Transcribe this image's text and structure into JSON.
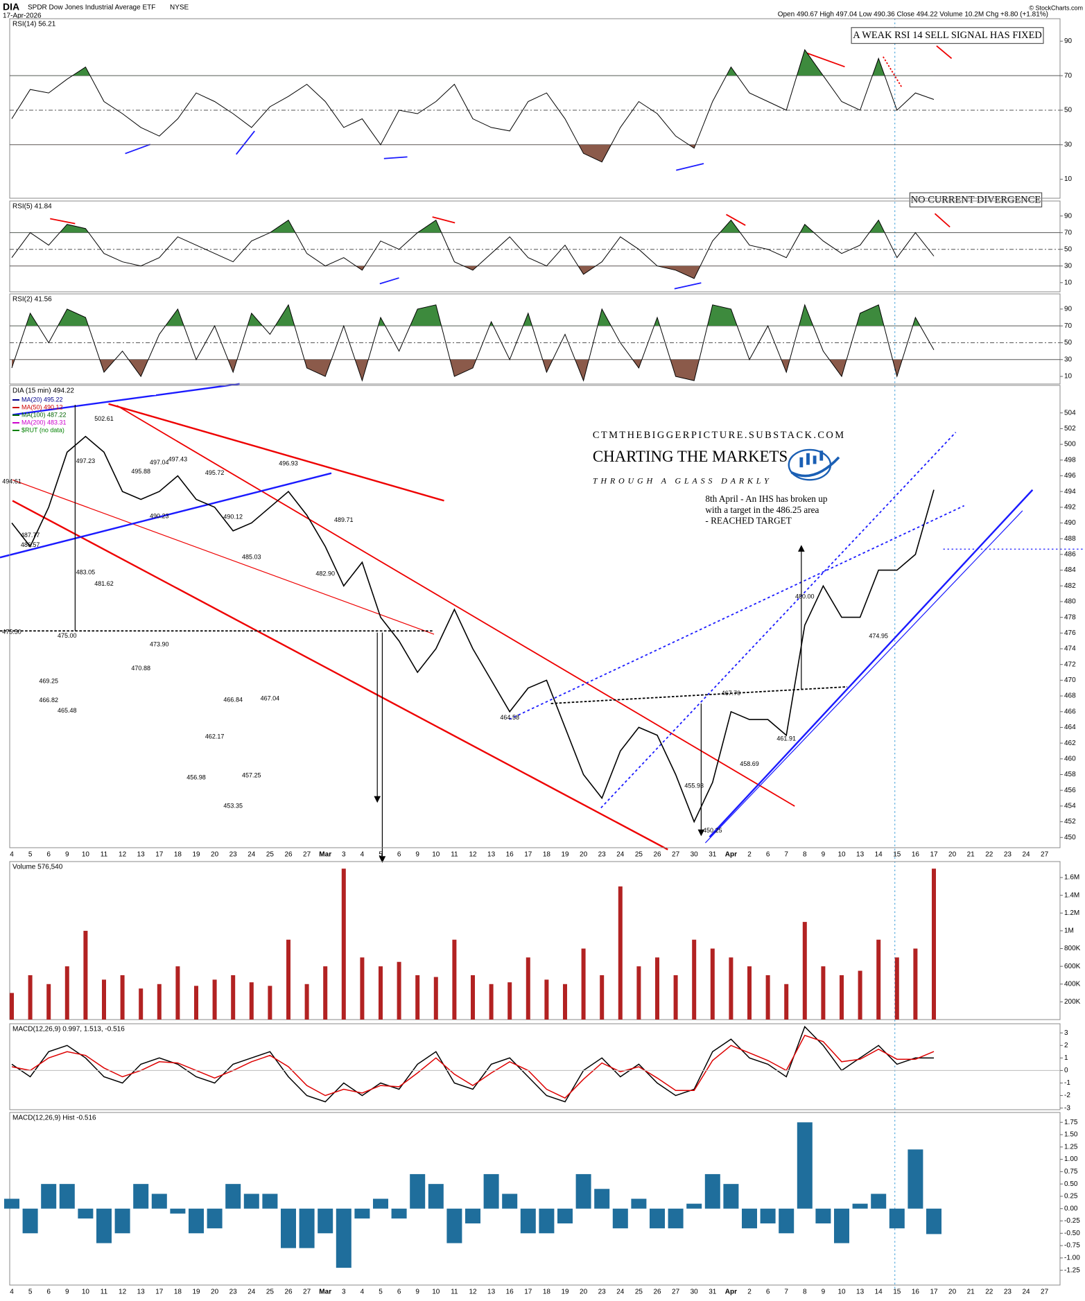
{
  "header": {
    "symbol": "DIA",
    "name": "SPDR Dow Jones Industrial Average ETF",
    "exchange": "NYSE",
    "date": "17-Apr-2026",
    "quote": "Open 490.67  High 497.04  Low 490.36  Close 494.22  Volume 10.2M  Chg +8.80 (+1.81%)",
    "copyright": "© StockCharts.com"
  },
  "annotations": {
    "rsi14_note": "A WEAK RSI 14 SELL SIGNAL HAS FIXED",
    "rsi5_note": "NO CURRENT DIVERGENCE",
    "ihs_note": [
      "8th April - An IHS has broken up",
      "with a target in the 486.25 area",
      "- REACHED TARGET"
    ],
    "site": "CTMTHEBIGGERPICTURE.SUBSTACK.COM",
    "brand": "CHARTING THE MARKETS",
    "tagline": "THROUGH A GLASS DARKLY"
  },
  "chart_data": [
    {
      "type": "line",
      "title": "RSI(14) 56.21",
      "color": "#000000",
      "ylim": [
        -1,
        103
      ],
      "yticks": [
        10,
        30,
        50,
        70,
        90
      ],
      "levels": [
        30,
        50,
        70
      ],
      "fill_colors": [
        "#8b5a4a",
        "#3d8a3d"
      ],
      "values": [
        45,
        62,
        60,
        68,
        75,
        55,
        48,
        40,
        35,
        45,
        60,
        55,
        48,
        40,
        52,
        58,
        65,
        55,
        40,
        45,
        30,
        50,
        48,
        55,
        65,
        45,
        40,
        38,
        55,
        60,
        45,
        25,
        20,
        40,
        55,
        48,
        35,
        28,
        55,
        75,
        60,
        55,
        50,
        85,
        70,
        55,
        50,
        80,
        50,
        60,
        56.21,
        null,
        null,
        null,
        null,
        null,
        null
      ]
    },
    {
      "type": "line",
      "title": "RSI(5) 41.84",
      "color": "#000000",
      "ylim": [
        -1,
        108
      ],
      "yticks": [
        10,
        30,
        50,
        70,
        90
      ],
      "levels": [
        30,
        50,
        70
      ],
      "fill_colors": [
        "#8b5a4a",
        "#3d8a3d"
      ],
      "values": [
        40,
        70,
        55,
        80,
        75,
        45,
        35,
        30,
        40,
        65,
        55,
        45,
        35,
        60,
        70,
        85,
        45,
        30,
        40,
        25,
        60,
        50,
        70,
        85,
        35,
        25,
        45,
        65,
        40,
        30,
        55,
        20,
        35,
        65,
        50,
        30,
        25,
        15,
        60,
        85,
        55,
        50,
        40,
        80,
        60,
        45,
        55,
        85,
        40,
        70,
        41.84,
        null,
        null,
        null,
        null,
        null,
        null
      ]
    },
    {
      "type": "line",
      "title": "RSI(2) 41.56",
      "color": "#000000",
      "ylim": [
        1,
        108
      ],
      "yticks": [
        10,
        30,
        50,
        70,
        90
      ],
      "levels": [
        30,
        50,
        70
      ],
      "fill_colors": [
        "#8b5a4a",
        "#3d8a3d"
      ],
      "values": [
        20,
        85,
        50,
        90,
        80,
        15,
        40,
        10,
        60,
        90,
        30,
        70,
        15,
        85,
        60,
        95,
        20,
        10,
        70,
        5,
        80,
        40,
        90,
        95,
        10,
        20,
        75,
        30,
        85,
        15,
        60,
        5,
        90,
        50,
        20,
        80,
        10,
        5,
        95,
        90,
        30,
        70,
        15,
        95,
        40,
        10,
        85,
        95,
        10,
        80,
        41.56,
        null,
        null,
        null,
        null,
        null,
        null
      ]
    },
    {
      "type": "line",
      "title": "DIA (15 min) 494.22",
      "color": "#000000",
      "legend": [
        {
          "text": "MA(20) 495.22",
          "color": "#00008b"
        },
        {
          "text": "MA(50) 490.12",
          "color": "#cc0000"
        },
        {
          "text": "MA(100) 487.22",
          "color": "#006400"
        },
        {
          "text": "MA(200) 483.31",
          "color": "#cc00cc"
        },
        {
          "text": "$RUT (no data)",
          "color": "#008000"
        }
      ],
      "categories": [
        "4",
        "5",
        "6",
        "9",
        "10",
        "11",
        "12",
        "13",
        "17",
        "18",
        "19",
        "20",
        "23",
        "24",
        "25",
        "26",
        "27",
        "Mar",
        "3",
        "4",
        "5",
        "6",
        "9",
        "10",
        "11",
        "12",
        "13",
        "16",
        "17",
        "18",
        "19",
        "20",
        "23",
        "24",
        "25",
        "26",
        "27",
        "30",
        "31",
        "Apr",
        "2",
        "6",
        "7",
        "8",
        "9",
        "10",
        "13",
        "14",
        "15",
        "16",
        "17",
        "20",
        "21",
        "22",
        "23",
        "24",
        "27"
      ],
      "ylim": [
        448.7,
        507.5
      ],
      "yticks": [
        450,
        452,
        454,
        456,
        458,
        460,
        462,
        464,
        466,
        468,
        470,
        472,
        474,
        476,
        478,
        480,
        482,
        484,
        486,
        488,
        490,
        492,
        494,
        496,
        498,
        500,
        502,
        504
      ],
      "values": [
        490,
        487,
        492,
        499,
        501,
        499,
        494,
        493,
        494,
        496,
        493,
        492,
        489,
        490,
        492,
        494,
        491,
        487,
        482,
        485,
        478,
        475,
        471,
        474,
        479,
        474,
        470,
        466,
        469,
        470,
        464,
        458,
        455,
        461,
        464,
        463,
        458,
        452,
        457,
        466,
        465,
        465,
        463,
        477,
        482,
        478,
        478,
        484,
        484,
        486,
        494.22,
        null,
        null,
        null,
        null,
        null,
        null
      ],
      "price_labels": [
        {
          "date": "4",
          "value": 494.61
        },
        {
          "date": "5",
          "value": 486.57
        },
        {
          "date": "11",
          "value": 502.61
        },
        {
          "date": "10",
          "value": 497.23
        },
        {
          "date": "13",
          "value": 495.88
        },
        {
          "date": "18",
          "value": 497.43
        },
        {
          "date": "20",
          "value": 495.72
        },
        {
          "date": "17",
          "value": 490.23
        },
        {
          "date": "23",
          "value": 490.12
        },
        {
          "date": "24",
          "value": 485.03
        },
        {
          "date": "26",
          "value": 496.93
        },
        {
          "date": "3",
          "value": 489.71
        },
        {
          "date": "5",
          "value": 487.77
        },
        {
          "date": "Mar",
          "value": 482.9,
          "label": "482.90"
        },
        {
          "date": "4",
          "value": 475.5,
          "label": "475.50"
        },
        {
          "date": "9",
          "value": 475,
          "label": "475.00"
        },
        {
          "date": "11",
          "value": 481.62
        },
        {
          "date": "6",
          "value": 469.25
        },
        {
          "date": "9",
          "value": 465.48
        },
        {
          "date": "13",
          "value": 470.88
        },
        {
          "date": "17",
          "value": 473.9,
          "label": "473.90"
        },
        {
          "date": "16",
          "value": 464.58
        },
        {
          "date": "23",
          "value": 466.84
        },
        {
          "date": "25",
          "value": 467.04
        },
        {
          "date": "20",
          "value": 462.17
        },
        {
          "date": "19",
          "value": 456.98
        },
        {
          "date": "23",
          "value": 453.35
        },
        {
          "date": "24",
          "value": 457.25
        },
        {
          "date": "30",
          "value": 455.93
        },
        {
          "date": "31",
          "value": 450.25
        },
        {
          "date": "2",
          "value": 458.69
        },
        {
          "date": "Apr",
          "value": 467.7,
          "label": "467.70"
        },
        {
          "date": "6",
          "value": 466.82
        },
        {
          "date": "7",
          "value": 461.91
        },
        {
          "date": "8",
          "value": 480,
          "label": "480.00"
        },
        {
          "date": "10",
          "value": 483.05
        },
        {
          "date": "14",
          "value": 474.95
        },
        {
          "date": "17",
          "value": 497.04
        }
      ]
    },
    {
      "type": "bar",
      "title": "Volume 576,540",
      "color": "#b22222",
      "ylim": [
        0,
        1780000
      ],
      "yticks": [
        {
          "value": 200000,
          "label": "200K"
        },
        {
          "value": 400000,
          "label": "400K"
        },
        {
          "value": 600000,
          "label": "600K"
        },
        {
          "value": 800000,
          "label": "800K"
        },
        {
          "value": 1000000,
          "label": "1M"
        },
        {
          "value": 1200000,
          "label": "1.2M"
        },
        {
          "value": 1400000,
          "label": "1.4M"
        },
        {
          "value": 1600000,
          "label": "1.6M"
        }
      ],
      "values": [
        300000,
        500000,
        400000,
        600000,
        1000000,
        450000,
        500000,
        350000,
        400000,
        600000,
        380000,
        450000,
        500000,
        420000,
        380000,
        900000,
        400000,
        600000,
        1700000,
        700000,
        600000,
        650000,
        500000,
        480000,
        900000,
        500000,
        400000,
        420000,
        700000,
        450000,
        400000,
        800000,
        500000,
        1500000,
        600000,
        700000,
        500000,
        900000,
        800000,
        700000,
        600000,
        500000,
        400000,
        1100000,
        600000,
        500000,
        550000,
        900000,
        700000,
        800000,
        1700000,
        null,
        null,
        null,
        null,
        null,
        null
      ]
    },
    {
      "type": "line",
      "title": "MACD(12,26,9) 0.997, 1.513, -0.516",
      "ylim": [
        -3.13,
        3.73
      ],
      "yticks": [
        -3,
        -2,
        -1,
        0,
        1,
        2,
        3
      ],
      "series": [
        {
          "name": "MACD",
          "color": "#000000",
          "values": [
            0.5,
            -0.5,
            1.5,
            2,
            1,
            -0.5,
            -1,
            0.5,
            1,
            0.5,
            -0.5,
            -1,
            0.5,
            1,
            1.5,
            -0.5,
            -2,
            -2.5,
            -1,
            -2,
            -1,
            -1.5,
            0.5,
            1.5,
            -1,
            -1.5,
            0.5,
            1,
            -0.5,
            -2,
            -2.5,
            0,
            1,
            -0.5,
            0.5,
            -1,
            -2,
            -1.5,
            1.5,
            2.5,
            1,
            0.5,
            -0.5,
            3.5,
            2,
            0,
            1,
            2,
            0.5,
            1,
            0.997,
            null,
            null,
            null,
            null,
            null,
            null
          ]
        },
        {
          "name": "Signal",
          "color": "#dd0000",
          "values": [
            0.3,
            0,
            1,
            1.5,
            1.2,
            0.2,
            -0.5,
            0,
            0.7,
            0.6,
            0,
            -0.6,
            0,
            0.7,
            1.2,
            0.3,
            -1.2,
            -2,
            -1.5,
            -1.8,
            -1.2,
            -1.3,
            -0.2,
            1,
            -0.3,
            -1.2,
            -0.2,
            0.7,
            0,
            -1.5,
            -2.2,
            -0.7,
            0.6,
            -0.1,
            0.3,
            -0.6,
            -1.6,
            -1.6,
            0.8,
            2,
            1.4,
            0.8,
            0,
            2.8,
            2.3,
            0.7,
            0.9,
            1.7,
            0.9,
            0.9,
            1.513,
            null,
            null,
            null,
            null,
            null,
            null
          ]
        }
      ]
    },
    {
      "type": "bar",
      "title": "MACD(12,26,9) Hist -0.516",
      "color": "#1f6e9c",
      "ylim": [
        -1.55,
        1.95
      ],
      "yticks": [
        {
          "value": 1.75,
          "label": "1.75"
        },
        {
          "value": 1.5,
          "label": "1.50"
        },
        {
          "value": 1.25,
          "label": "1.25"
        },
        {
          "value": 1,
          "label": "1.00"
        },
        {
          "value": 0.75,
          "label": "0.75"
        },
        {
          "value": 0.5,
          "label": "0.50"
        },
        {
          "value": 0.25,
          "label": "0.25"
        },
        {
          "value": 0,
          "label": "0.00"
        },
        {
          "value": -0.25,
          "label": "-0.25"
        },
        {
          "value": -0.5,
          "label": "-0.50"
        },
        {
          "value": -0.75,
          "label": "-0.75"
        },
        {
          "value": -1,
          "label": "-1.00"
        },
        {
          "value": -1.25,
          "label": "-1.25"
        }
      ],
      "categories": [
        "4",
        "5",
        "6",
        "9",
        "10",
        "11",
        "12",
        "13",
        "17",
        "18",
        "19",
        "20",
        "23",
        "24",
        "25",
        "26",
        "27",
        "Mar",
        "3",
        "4",
        "5",
        "6",
        "9",
        "10",
        "11",
        "12",
        "13",
        "16",
        "17",
        "18",
        "19",
        "20",
        "23",
        "24",
        "25",
        "26",
        "27",
        "30",
        "31",
        "Apr",
        "2",
        "6",
        "7",
        "8",
        "9",
        "10",
        "13",
        "14",
        "15",
        "16",
        "17",
        "20",
        "21",
        "22",
        "23",
        "24",
        "27"
      ],
      "values": [
        0.2,
        -0.5,
        0.5,
        0.5,
        -0.2,
        -0.7,
        -0.5,
        0.5,
        0.3,
        -0.1,
        -0.5,
        -0.4,
        0.5,
        0.3,
        0.3,
        -0.8,
        -0.8,
        -0.5,
        -1.2,
        -0.2,
        0.2,
        -0.2,
        0.7,
        0.5,
        -0.7,
        -0.3,
        0.7,
        0.3,
        -0.5,
        -0.5,
        -0.3,
        0.7,
        0.4,
        -0.4,
        0.2,
        -0.4,
        -0.4,
        0.1,
        0.7,
        0.5,
        -0.4,
        -0.3,
        -0.5,
        1.75,
        -0.3,
        -0.7,
        0.1,
        0.3,
        -0.4,
        1.2,
        -0.516,
        null,
        null,
        null,
        null,
        null,
        null
      ]
    }
  ]
}
